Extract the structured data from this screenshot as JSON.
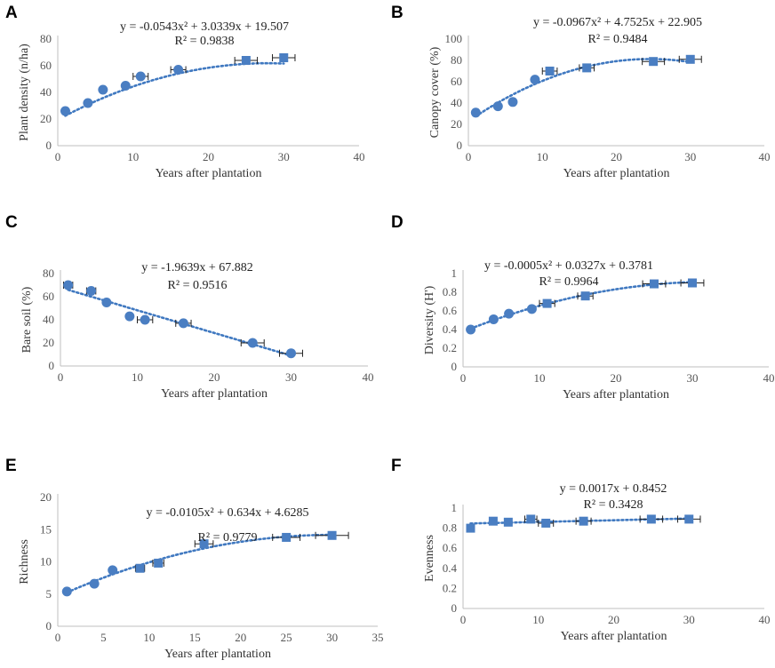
{
  "figure": {
    "marker_color": "#4a7ec2",
    "trend_color": "#3f78c0"
  },
  "chart_data": [
    {
      "panel": "A",
      "type": "scatter",
      "xlabel": "Years after plantation",
      "ylabel": "Plant density (n/ha)",
      "xlim": [
        0,
        40
      ],
      "ylim": [
        0,
        80
      ],
      "xticks": [
        "0",
        "10",
        "20",
        "30",
        "40"
      ],
      "yticks": [
        "0",
        "20",
        "40",
        "60",
        "80"
      ],
      "equation": "y = -0.0543x² + 3.0339x + 19.507",
      "r2": "R² = 0.9838",
      "trend": {
        "kind": "poly2",
        "a": -0.0543,
        "b": 3.0339,
        "c": 19.507,
        "xrange": [
          1,
          30
        ]
      },
      "points": [
        {
          "x": 1,
          "y": 26,
          "marker": "circle"
        },
        {
          "x": 4,
          "y": 32,
          "marker": "circle"
        },
        {
          "x": 6,
          "y": 42,
          "marker": "circle"
        },
        {
          "x": 9,
          "y": 45,
          "marker": "circle"
        },
        {
          "x": 11,
          "y": 52,
          "marker": "circle",
          "xerr": 1
        },
        {
          "x": 16,
          "y": 57,
          "marker": "circle",
          "xerr": 1
        },
        {
          "x": 25,
          "y": 64,
          "marker": "square",
          "xerr": 1.5
        },
        {
          "x": 30,
          "y": 66,
          "marker": "square",
          "xerr": 1.5
        }
      ]
    },
    {
      "panel": "B",
      "type": "scatter",
      "xlabel": "Years after plantation",
      "ylabel": "Canopy cover (%)",
      "xlim": [
        0,
        40
      ],
      "ylim": [
        0,
        100
      ],
      "xticks": [
        "0",
        "10",
        "20",
        "30",
        "40"
      ],
      "yticks": [
        "0",
        "20",
        "40",
        "60",
        "80",
        "100"
      ],
      "equation": "y = -0.0967x² + 4.7525x + 22.905",
      "r2": "R² = 0.9484",
      "trend": {
        "kind": "poly2",
        "a": -0.0967,
        "b": 4.7525,
        "c": 22.905,
        "xrange": [
          1,
          30
        ]
      },
      "points": [
        {
          "x": 1,
          "y": 31,
          "marker": "circle"
        },
        {
          "x": 4,
          "y": 37,
          "marker": "circle"
        },
        {
          "x": 6,
          "y": 41,
          "marker": "circle"
        },
        {
          "x": 9,
          "y": 62,
          "marker": "circle"
        },
        {
          "x": 11,
          "y": 70,
          "marker": "square",
          "xerr": 1
        },
        {
          "x": 16,
          "y": 73,
          "marker": "square",
          "xerr": 1
        },
        {
          "x": 25,
          "y": 79,
          "marker": "square",
          "xerr": 1.5
        },
        {
          "x": 30,
          "y": 81,
          "marker": "square",
          "xerr": 1.5
        }
      ]
    },
    {
      "panel": "C",
      "type": "scatter",
      "xlabel": "Years after plantation",
      "ylabel": "Bare soil (%)",
      "xlim": [
        0,
        40
      ],
      "ylim": [
        0,
        80
      ],
      "xticks": [
        "0",
        "10",
        "20",
        "30",
        "40"
      ],
      "yticks": [
        "0",
        "20",
        "40",
        "60",
        "80"
      ],
      "equation": "y = -1.9639x + 67.882",
      "r2": "R² = 0.9516",
      "trend": {
        "kind": "linear",
        "m": -1.9639,
        "c": 67.882,
        "xrange": [
          1,
          30
        ]
      },
      "points": [
        {
          "x": 1,
          "y": 70,
          "marker": "circle",
          "xerr": 0.6
        },
        {
          "x": 4,
          "y": 65,
          "marker": "circle",
          "xerr": 0.6
        },
        {
          "x": 6,
          "y": 55,
          "marker": "circle"
        },
        {
          "x": 9,
          "y": 43,
          "marker": "circle"
        },
        {
          "x": 11,
          "y": 40,
          "marker": "circle",
          "xerr": 1
        },
        {
          "x": 16,
          "y": 37,
          "marker": "circle",
          "xerr": 1
        },
        {
          "x": 25,
          "y": 20,
          "marker": "circle",
          "xerr": 1.5
        },
        {
          "x": 30,
          "y": 11,
          "marker": "circle",
          "xerr": 1.5
        }
      ]
    },
    {
      "panel": "D",
      "type": "scatter",
      "xlabel": "Years after plantation",
      "ylabel": "Diversity (H')",
      "xlim": [
        0,
        40
      ],
      "ylim": [
        0,
        1
      ],
      "xticks": [
        "0",
        "10",
        "20",
        "30",
        "40"
      ],
      "yticks": [
        "0",
        "0.2",
        "0.4",
        "0.6",
        "0.8",
        "1"
      ],
      "equation": "y = -0.0005x² + 0.0327x + 0.3781",
      "r2": "R² = 0.9964",
      "trend": {
        "kind": "poly2",
        "a": -0.0005,
        "b": 0.0327,
        "c": 0.3781,
        "xrange": [
          1,
          30
        ]
      },
      "points": [
        {
          "x": 1,
          "y": 0.4,
          "marker": "circle"
        },
        {
          "x": 4,
          "y": 0.51,
          "marker": "circle"
        },
        {
          "x": 6,
          "y": 0.57,
          "marker": "circle"
        },
        {
          "x": 9,
          "y": 0.62,
          "marker": "circle"
        },
        {
          "x": 11,
          "y": 0.68,
          "marker": "square",
          "xerr": 1
        },
        {
          "x": 16,
          "y": 0.76,
          "marker": "square",
          "xerr": 1
        },
        {
          "x": 25,
          "y": 0.89,
          "marker": "square",
          "xerr": 1.5
        },
        {
          "x": 30,
          "y": 0.9,
          "marker": "square",
          "xerr": 1.5
        }
      ]
    },
    {
      "panel": "E",
      "type": "scatter",
      "xlabel": "Years after plantation",
      "ylabel": "Richness",
      "xlim": [
        0,
        35
      ],
      "ylim": [
        0,
        20
      ],
      "xticks": [
        "0",
        "5",
        "10",
        "15",
        "20",
        "25",
        "30",
        "35"
      ],
      "yticks": [
        "0",
        "5",
        "10",
        "15",
        "20"
      ],
      "equation": "y = -0.0105x² + 0.634x + 4.6285",
      "r2": "R² = 0.9779",
      "trend": {
        "kind": "poly2",
        "a": -0.0105,
        "b": 0.634,
        "c": 4.6285,
        "xrange": [
          1,
          30
        ]
      },
      "points": [
        {
          "x": 1,
          "y": 5.4,
          "marker": "circle"
        },
        {
          "x": 4,
          "y": 6.6,
          "marker": "circle"
        },
        {
          "x": 6,
          "y": 8.7,
          "marker": "circle"
        },
        {
          "x": 9,
          "y": 9.0,
          "marker": "square",
          "xerr": 0.5
        },
        {
          "x": 11,
          "y": 9.8,
          "marker": "square",
          "xerr": 0.6
        },
        {
          "x": 16,
          "y": 12.8,
          "marker": "square",
          "xerr": 1
        },
        {
          "x": 25,
          "y": 13.8,
          "marker": "square",
          "xerr": 1.5
        },
        {
          "x": 30,
          "y": 14.1,
          "marker": "square",
          "xerr": 1.8
        }
      ]
    },
    {
      "panel": "F",
      "type": "scatter",
      "xlabel": "Years after plantation",
      "ylabel": "Evenness",
      "xlim": [
        0,
        40
      ],
      "ylim": [
        0,
        1
      ],
      "xticks": [
        "0",
        "10",
        "20",
        "30",
        "40"
      ],
      "yticks": [
        "0",
        "0.2",
        "0.4",
        "0.6",
        "0.8",
        "1"
      ],
      "equation": "y = 0.0017x + 0.8452",
      "r2": "R² = 0.3428",
      "trend": {
        "kind": "linear",
        "m": 0.0017,
        "c": 0.8452,
        "xrange": [
          1,
          30
        ]
      },
      "points": [
        {
          "x": 1,
          "y": 0.8,
          "marker": "square"
        },
        {
          "x": 4,
          "y": 0.87,
          "marker": "square"
        },
        {
          "x": 6,
          "y": 0.86,
          "marker": "square"
        },
        {
          "x": 9,
          "y": 0.89,
          "marker": "square",
          "xerr": 0.8
        },
        {
          "x": 11,
          "y": 0.85,
          "marker": "square",
          "xerr": 1
        },
        {
          "x": 16,
          "y": 0.87,
          "marker": "square",
          "xerr": 1
        },
        {
          "x": 25,
          "y": 0.89,
          "marker": "square",
          "xerr": 1.5
        },
        {
          "x": 30,
          "y": 0.89,
          "marker": "square",
          "xerr": 1.5
        }
      ]
    }
  ]
}
